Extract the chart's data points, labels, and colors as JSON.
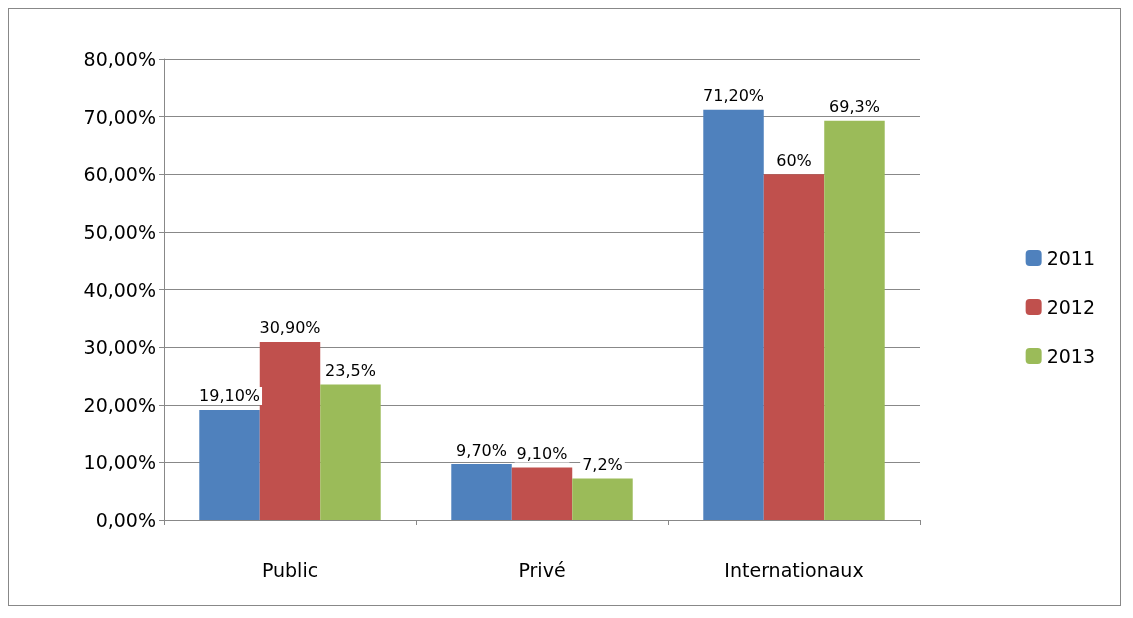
{
  "chart_data": {
    "type": "bar",
    "categories": [
      "Public",
      "Privé",
      "Internationaux"
    ],
    "series": [
      {
        "name": "2011",
        "color": "#4f81bd",
        "values": [
          19.1,
          9.7,
          71.2
        ],
        "value_labels": [
          "19,10%",
          "9,70%",
          "71,20%"
        ]
      },
      {
        "name": "2012",
        "color": "#c0504d",
        "values": [
          30.9,
          9.1,
          60
        ],
        "value_labels": [
          "30,90%",
          "9,10%",
          "60%"
        ]
      },
      {
        "name": "2013",
        "color": "#9bbb59",
        "values": [
          23.5,
          7.2,
          69.3
        ],
        "value_labels": [
          "23,5%",
          "7,2%",
          "69,3%"
        ]
      }
    ],
    "ylim": [
      0,
      80
    ],
    "yticks": [
      {
        "value": 0,
        "label": "0,00%"
      },
      {
        "value": 10,
        "label": "10,00%"
      },
      {
        "value": 20,
        "label": "20,00%"
      },
      {
        "value": 30,
        "label": "30,00%"
      },
      {
        "value": 40,
        "label": "40,00%"
      },
      {
        "value": 50,
        "label": "50,00%"
      },
      {
        "value": 60,
        "label": "60,00%"
      },
      {
        "value": 70,
        "label": "70,00%"
      },
      {
        "value": 80,
        "label": "80,00%"
      }
    ],
    "grid": "y",
    "legend": "right"
  }
}
